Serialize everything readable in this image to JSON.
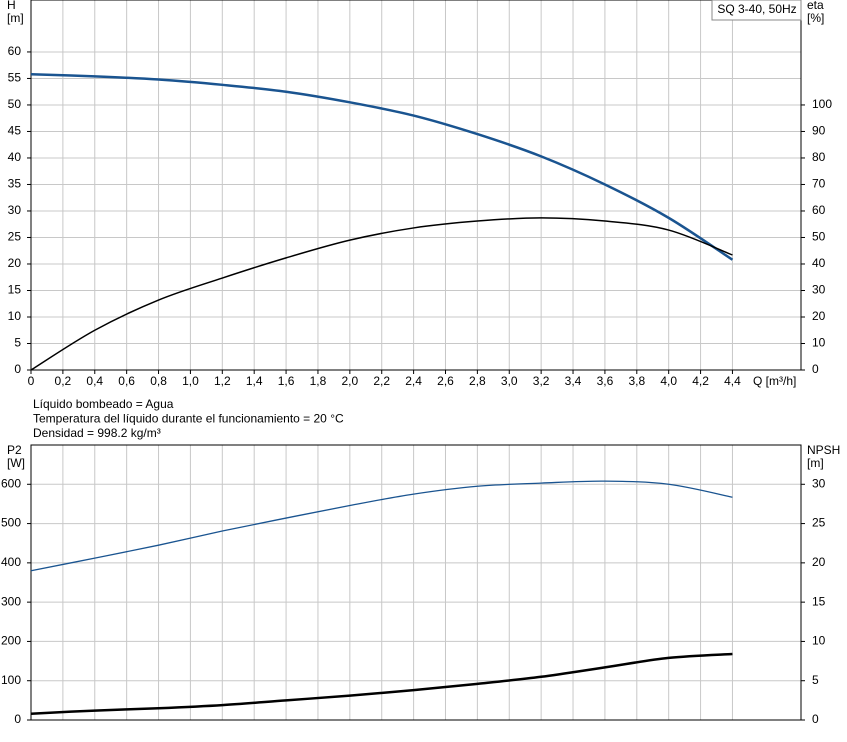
{
  "chart_data": [
    {
      "type": "line",
      "title": "SQ 3-40, 50Hz",
      "ylabel": [
        "H",
        "[m]"
      ],
      "y2label": [
        "eta",
        "[%]"
      ],
      "xlabel": "Q [m³/h]",
      "xlim": [
        0,
        4.83
      ],
      "xticks": [
        0,
        {
          "value": 0.2,
          "label": "0,2"
        },
        {
          "value": 0.4,
          "label": "0,4"
        },
        {
          "value": 0.6,
          "label": "0,6"
        },
        {
          "value": 0.8,
          "label": "0,8"
        },
        {
          "value": 1.0,
          "label": "1,0"
        },
        {
          "value": 1.2,
          "label": "1,2"
        },
        {
          "value": 1.4,
          "label": "1,4"
        },
        {
          "value": 1.6,
          "label": "1,6"
        },
        {
          "value": 1.8,
          "label": "1,8"
        },
        {
          "value": 2.0,
          "label": "2,0"
        },
        {
          "value": 2.2,
          "label": "2,2"
        },
        {
          "value": 2.4,
          "label": "2,4"
        },
        {
          "value": 2.6,
          "label": "2,6"
        },
        {
          "value": 2.8,
          "label": "2,8"
        },
        {
          "value": 3.0,
          "label": "3,0"
        },
        {
          "value": 3.2,
          "label": "3,2"
        },
        {
          "value": 3.4,
          "label": "3,4"
        },
        {
          "value": 3.6,
          "label": "3,6"
        },
        {
          "value": 3.8,
          "label": "3,8"
        },
        {
          "value": 4.0,
          "label": "4,0"
        },
        {
          "value": 4.2,
          "label": "4,2"
        },
        {
          "value": 4.4,
          "label": "4,4"
        }
      ],
      "ylim": [
        0,
        69.8
      ],
      "yticks": [
        0,
        5,
        10,
        15,
        20,
        25,
        30,
        35,
        40,
        45,
        50,
        55,
        60
      ],
      "y2lim": [
        0,
        139.6
      ],
      "y2ticks": [
        0,
        10,
        20,
        30,
        40,
        50,
        60,
        70,
        80,
        90,
        100
      ],
      "grid": true,
      "x": [
        0,
        0.4,
        0.8,
        1.2,
        1.6,
        2.0,
        2.4,
        2.8,
        3.2,
        3.6,
        4.0,
        4.4
      ],
      "series": [
        {
          "color": "#1a5490",
          "width": 2.5,
          "values": [
            55.8,
            55.4,
            54.8,
            53.8,
            52.5,
            50.5,
            48,
            44.5,
            40.3,
            35,
            28.7,
            20.8
          ]
        },
        {
          "color": "#000000",
          "width": 1.5,
          "axis": "y2",
          "values": [
            0,
            15,
            26.4,
            34.7,
            42.3,
            49,
            53.6,
            56.2,
            57.4,
            56.2,
            52.8,
            43.4
          ]
        }
      ]
    },
    {
      "type": "line",
      "notes": [
        "Líquido bombeado = Agua",
        "Temperatura del líquido durante el funcionamiento = 20 °C",
        "Densidad = 998.2 kg/m³"
      ],
      "ylabel": [
        "P2",
        "[W]"
      ],
      "y2label": [
        "NPSH",
        "[m]"
      ],
      "ylim": [
        0,
        700
      ],
      "yticks": [
        0,
        100,
        200,
        300,
        400,
        500,
        600
      ],
      "y2lim": [
        0,
        35
      ],
      "y2ticks": [
        0,
        5,
        10,
        15,
        20,
        25,
        30
      ],
      "grid": true,
      "x": [
        0,
        0.4,
        0.8,
        1.2,
        1.6,
        2.0,
        2.4,
        2.8,
        3.2,
        3.6,
        4.0,
        4.4
      ],
      "series": [
        {
          "color": "#1a5490",
          "width": 1.3,
          "values": [
            380,
            412,
            445,
            481,
            514,
            546,
            575,
            595,
            603,
            608,
            600,
            567
          ]
        },
        {
          "color": "#000000",
          "width": 2.5,
          "axis": "y2",
          "values": [
            0.8,
            1.2,
            1.5,
            1.9,
            2.5,
            3.1,
            3.8,
            4.6,
            5.5,
            6.7,
            7.9,
            8.4
          ]
        }
      ]
    }
  ]
}
